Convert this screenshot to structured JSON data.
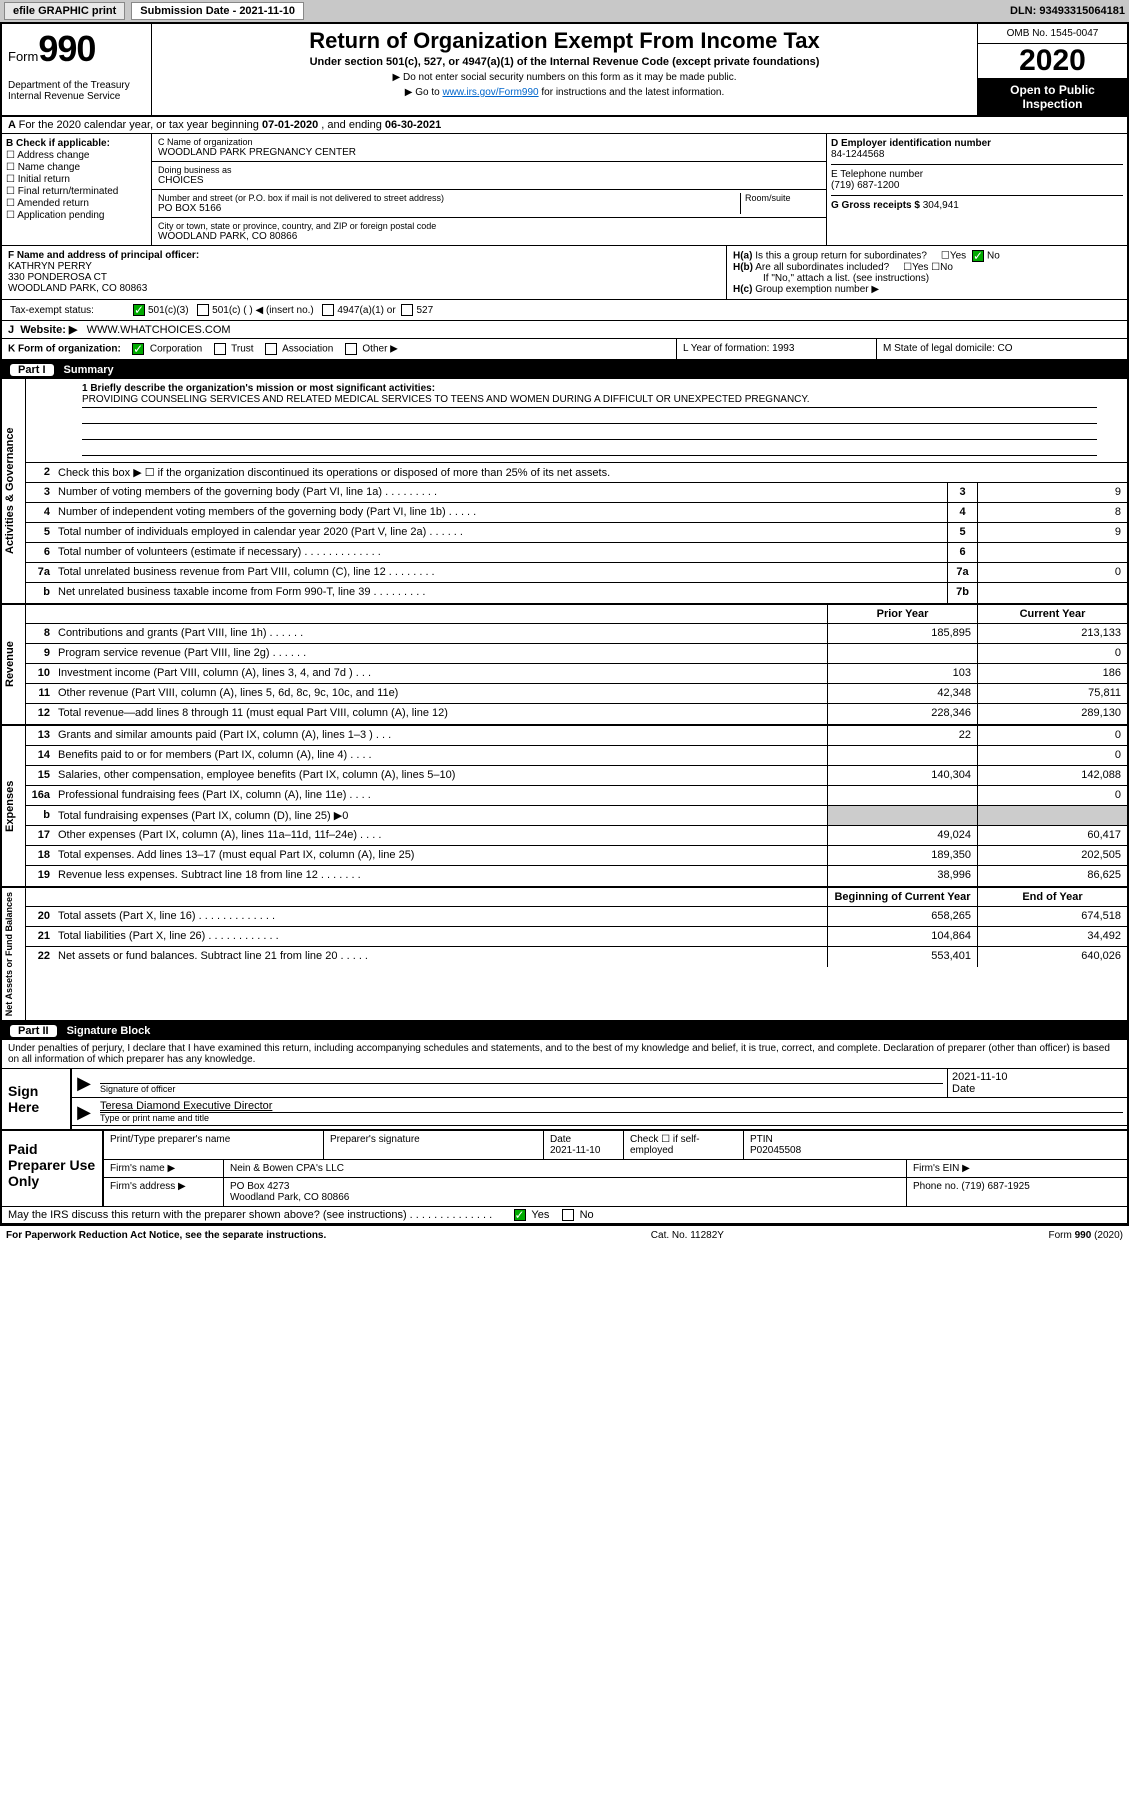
{
  "topbar": {
    "efile": "efile GRAPHIC print",
    "sub_date_lbl": "Submission Date - 2021-11-10",
    "dln": "DLN: 93493315064181"
  },
  "header": {
    "form_word": "Form",
    "form_num": "990",
    "dept": "Department of the Treasury\nInternal Revenue Service",
    "title": "Return of Organization Exempt From Income Tax",
    "sub": "Under section 501(c), 527, or 4947(a)(1) of the Internal Revenue Code (except private foundations)",
    "note1": "Do not enter social security numbers on this form as it may be made public.",
    "note2_pre": "Go to ",
    "note2_link": "www.irs.gov/Form990",
    "note2_post": " for instructions and the latest information.",
    "omb": "OMB No. 1545-0047",
    "year": "2020",
    "open": "Open to Public Inspection"
  },
  "rowA": {
    "text_pre": "For the 2020 calendar year, or tax year beginning ",
    "begin": "07-01-2020",
    "mid": " , and ending ",
    "end": "06-30-2021"
  },
  "colB": {
    "hdr": "B Check if applicable:",
    "items": [
      "Address change",
      "Name change",
      "Initial return",
      "Final return/terminated",
      "Amended return",
      "Application pending"
    ]
  },
  "colC": {
    "name_lbl": "C Name of organization",
    "name": "WOODLAND PARK PREGNANCY CENTER",
    "dba_lbl": "Doing business as",
    "dba": "CHOICES",
    "street_lbl": "Number and street (or P.O. box if mail is not delivered to street address)",
    "room_lbl": "Room/suite",
    "street": "PO BOX 5166",
    "city_lbl": "City or town, state or province, country, and ZIP or foreign postal code",
    "city": "WOODLAND PARK, CO  80866"
  },
  "colD": {
    "ein_lbl": "D Employer identification number",
    "ein": "84-1244568",
    "tel_lbl": "E Telephone number",
    "tel": "(719) 687-1200",
    "gross_lbl": "G Gross receipts $",
    "gross": "304,941"
  },
  "rowF": {
    "lbl": "F  Name and address of principal officer:",
    "name": "KATHRYN PERRY",
    "addr1": "330 PONDEROSA CT",
    "addr2": "WOODLAND PARK, CO  80863"
  },
  "rowH": {
    "ha": "Is this a group return for subordinates?",
    "hb": "Are all subordinates included?",
    "hbnote": "If \"No,\" attach a list. (see instructions)",
    "hc": "Group exemption number ▶",
    "yes": "Yes",
    "no": "No"
  },
  "taxRow": {
    "lbl": "Tax-exempt status:",
    "opts": [
      "501(c)(3)",
      "501(c) (  ) ◀ (insert no.)",
      "4947(a)(1) or",
      "527"
    ]
  },
  "rowJ": {
    "lbl": "Website: ▶",
    "val": "WWW.WHATCHOICES.COM"
  },
  "rowK": {
    "lbl": "K Form of organization:",
    "opts": [
      "Corporation",
      "Trust",
      "Association",
      "Other ▶"
    ],
    "L": "L Year of formation: 1993",
    "M": "M State of legal domicile: CO"
  },
  "part1": {
    "num": "Part I",
    "title": "Summary"
  },
  "mission": {
    "lbl": "1   Briefly describe the organization's mission or most significant activities:",
    "text": "PROVIDING COUNSELING SERVICES AND RELATED MEDICAL SERVICES TO TEENS AND WOMEN DURING A DIFFICULT OR UNEXPECTED PREGNANCY."
  },
  "gov": {
    "tab": "Activities & Governance",
    "lines": [
      {
        "n": "2",
        "d": "Check this box ▶ ☐  if the organization discontinued its operations or disposed of more than 25% of its net assets."
      },
      {
        "n": "3",
        "d": "Number of voting members of the governing body (Part VI, line 1a)  .   .   .   .   .   .   .   .   .",
        "nb": "3",
        "v": "9"
      },
      {
        "n": "4",
        "d": "Number of independent voting members of the governing body (Part VI, line 1b)  .   .   .   .   .",
        "nb": "4",
        "v": "8"
      },
      {
        "n": "5",
        "d": "Total number of individuals employed in calendar year 2020 (Part V, line 2a)  .   .   .   .   .   .",
        "nb": "5",
        "v": "9"
      },
      {
        "n": "6",
        "d": "Total number of volunteers (estimate if necessary)   .   .   .   .   .   .   .   .   .   .   .   .   .",
        "nb": "6",
        "v": ""
      },
      {
        "n": "7a",
        "d": "Total unrelated business revenue from Part VIII, column (C), line 12  .   .   .   .   .   .   .   .",
        "nb": "7a",
        "v": "0"
      },
      {
        "n": "b",
        "d": "Net unrelated business taxable income from Form 990-T, line 39   .   .   .   .   .   .   .   .   .",
        "nb": "7b",
        "v": ""
      }
    ]
  },
  "rev": {
    "tab": "Revenue",
    "hdr_prior": "Prior Year",
    "hdr_curr": "Current Year",
    "lines": [
      {
        "n": "8",
        "d": "Contributions and grants (Part VIII, line 1h)   .   .   .   .   .   .",
        "p": "185,895",
        "c": "213,133"
      },
      {
        "n": "9",
        "d": "Program service revenue (Part VIII, line 2g)   .   .   .   .   .   .",
        "p": "",
        "c": "0"
      },
      {
        "n": "10",
        "d": "Investment income (Part VIII, column (A), lines 3, 4, and 7d )   .   .   .",
        "p": "103",
        "c": "186"
      },
      {
        "n": "11",
        "d": "Other revenue (Part VIII, column (A), lines 5, 6d, 8c, 9c, 10c, and 11e)",
        "p": "42,348",
        "c": "75,811"
      },
      {
        "n": "12",
        "d": "Total revenue—add lines 8 through 11 (must equal Part VIII, column (A), line 12)",
        "p": "228,346",
        "c": "289,130"
      }
    ]
  },
  "exp": {
    "tab": "Expenses",
    "lines": [
      {
        "n": "13",
        "d": "Grants and similar amounts paid (Part IX, column (A), lines 1–3 )  .   .   .",
        "p": "22",
        "c": "0"
      },
      {
        "n": "14",
        "d": "Benefits paid to or for members (Part IX, column (A), line 4)  .   .   .   .",
        "p": "",
        "c": "0"
      },
      {
        "n": "15",
        "d": "Salaries, other compensation, employee benefits (Part IX, column (A), lines 5–10)",
        "p": "140,304",
        "c": "142,088"
      },
      {
        "n": "16a",
        "d": "Professional fundraising fees (Part IX, column (A), line 11e)  .   .   .   .",
        "p": "",
        "c": "0"
      },
      {
        "n": "b",
        "d": "Total fundraising expenses (Part IX, column (D), line 25) ▶0",
        "p": "shade",
        "c": "shade"
      },
      {
        "n": "17",
        "d": "Other expenses (Part IX, column (A), lines 11a–11d, 11f–24e)   .   .   .   .",
        "p": "49,024",
        "c": "60,417"
      },
      {
        "n": "18",
        "d": "Total expenses. Add lines 13–17 (must equal Part IX, column (A), line 25)",
        "p": "189,350",
        "c": "202,505"
      },
      {
        "n": "19",
        "d": "Revenue less expenses. Subtract line 18 from line 12 .   .   .   .   .   .   .",
        "p": "38,996",
        "c": "86,625"
      }
    ]
  },
  "net": {
    "tab": "Net Assets or Fund Balances",
    "hdr_b": "Beginning of Current Year",
    "hdr_e": "End of Year",
    "lines": [
      {
        "n": "20",
        "d": "Total assets (Part X, line 16)  .   .   .   .   .   .   .   .   .   .   .   .   .",
        "p": "658,265",
        "c": "674,518"
      },
      {
        "n": "21",
        "d": "Total liabilities (Part X, line 26)  .   .   .   .   .   .   .   .   .   .   .   .",
        "p": "104,864",
        "c": "34,492"
      },
      {
        "n": "22",
        "d": "Net assets or fund balances. Subtract line 21 from line 20  .   .   .   .   .",
        "p": "553,401",
        "c": "640,026"
      }
    ]
  },
  "part2": {
    "num": "Part II",
    "title": "Signature Block"
  },
  "sig": {
    "intro": "Under penalties of perjury, I declare that I have examined this return, including accompanying schedules and statements, and to the best of my knowledge and belief, it is true, correct, and complete. Declaration of preparer (other than officer) is based on all information of which preparer has any knowledge.",
    "here": "Sign Here",
    "off_lbl": "Signature of officer",
    "date_lbl": "Date",
    "date": "2021-11-10",
    "name": "Teresa Diamond  Executive Director",
    "name_lbl": "Type or print name and title"
  },
  "prep": {
    "lbl": "Paid Preparer Use Only",
    "h1": "Print/Type preparer's name",
    "h2": "Preparer's signature",
    "h3": "Date",
    "h3v": "2021-11-10",
    "h4": "Check ☐ if self-employed",
    "h5": "PTIN",
    "h5v": "P02045508",
    "firm_lbl": "Firm's name     ▶",
    "firm": "Nein & Bowen CPA's LLC",
    "ein_lbl": "Firm's EIN ▶",
    "addr_lbl": "Firm's address ▶",
    "addr1": "PO Box 4273",
    "addr2": "Woodland Park, CO  80866",
    "phone_lbl": "Phone no.",
    "phone": "(719) 687-1925",
    "discuss": "May the IRS discuss this return with the preparer shown above? (see instructions)   .   .   .   .   .   .   .   .   .   .   .   .   .   ."
  },
  "footer": {
    "left": "For Paperwork Reduction Act Notice, see the separate instructions.",
    "mid": "Cat. No. 11282Y",
    "right": "Form 990 (2020)"
  }
}
